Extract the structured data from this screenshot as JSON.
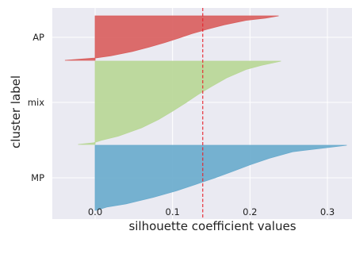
{
  "chart_data": {
    "type": "area",
    "xlabel": "silhouette coefficient values",
    "ylabel": "cluster label",
    "xlim": [
      -0.055,
      0.33
    ],
    "x_ticks": [
      0.0,
      0.1,
      0.2,
      0.3
    ],
    "x_tick_labels": [
      "0.0",
      "0.1",
      "0.2",
      "0.3"
    ],
    "grid": true,
    "background_color": "#eaeaf2",
    "reference_line": {
      "x": 0.139,
      "color": "#e8202a",
      "style": "dashed"
    },
    "clusters": [
      {
        "label": "AP",
        "color": "#d9605f",
        "rank_fraction": [
          0.0,
          0.05,
          0.1,
          0.2,
          0.3,
          0.4,
          0.5,
          0.6,
          0.7,
          0.8,
          0.9,
          0.95,
          1.0
        ],
        "values": [
          -0.039,
          -0.001,
          0.02,
          0.048,
          0.07,
          0.09,
          0.108,
          0.125,
          0.145,
          0.167,
          0.195,
          0.22,
          0.237
        ]
      },
      {
        "label": "mix",
        "color": "#b9d797",
        "rank_fraction": [
          0.0,
          0.02,
          0.05,
          0.1,
          0.2,
          0.3,
          0.4,
          0.5,
          0.6,
          0.7,
          0.8,
          0.9,
          0.95,
          1.0
        ],
        "values": [
          -0.022,
          -0.002,
          0.008,
          0.03,
          0.06,
          0.082,
          0.1,
          0.117,
          0.133,
          0.151,
          0.17,
          0.195,
          0.215,
          0.24
        ]
      },
      {
        "label": "MP",
        "color": "#6aabcd",
        "rank_fraction": [
          0.0,
          0.05,
          0.1,
          0.2,
          0.3,
          0.4,
          0.5,
          0.6,
          0.7,
          0.8,
          0.9,
          0.95,
          1.0
        ],
        "values": [
          0.001,
          0.015,
          0.04,
          0.075,
          0.105,
          0.13,
          0.155,
          0.178,
          0.2,
          0.225,
          0.255,
          0.29,
          0.325
        ]
      }
    ]
  }
}
